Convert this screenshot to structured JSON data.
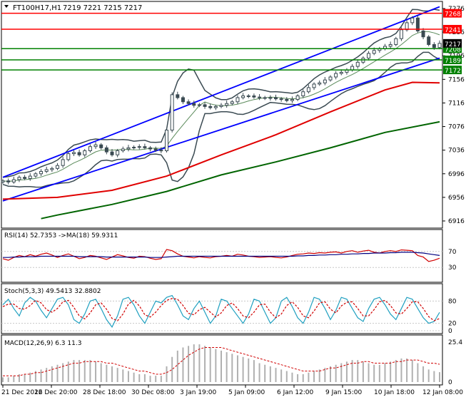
{
  "header": {
    "symbol": "FT100H17,H1",
    "ohlc": "7219 7221 7215 7217"
  },
  "colors": {
    "price_line": "#3a4a52",
    "channel": "#0000ff",
    "resistance": "#ff0000",
    "support": "#008000",
    "ma_red": "#e00000",
    "ma_green": "#006400",
    "bollinger": "#3a4a52",
    "tag_red": "#ff0000",
    "tag_green": "#008000",
    "tag_black": "#000000",
    "rsi_red": "#d00000",
    "rsi_blue": "#000080",
    "stoch_main": "#20a0c0",
    "stoch_signal": "#d00000",
    "macd_hist": "#b0b0b0",
    "macd_signal": "#d00000"
  },
  "chart_data": [
    {
      "type": "line",
      "panel": "price",
      "symbol": "FT100H17",
      "timeframe": "H1",
      "ylim": [
        6916,
        7276
      ],
      "y_ticks": [
        7276,
        7236,
        7196,
        7156,
        7116,
        7076,
        7036,
        6996,
        6956,
        6916
      ],
      "x_labels": [
        "21 Dec 2016",
        "22 Dec 20:00",
        "28 Dec 18:00",
        "30 Dec 08:00",
        "3 Jan 19:00",
        "5 Jan 09:00",
        "6 Jan 12:00",
        "9 Jan 15:00",
        "10 Jan 18:00",
        "12 Jan 08:00"
      ],
      "horizontal_levels": [
        {
          "price": 7268,
          "color": "red"
        },
        {
          "price": 7241,
          "color": "red"
        },
        {
          "price": 7208,
          "color": "green"
        },
        {
          "price": 7189,
          "color": "green"
        },
        {
          "price": 7172,
          "color": "green"
        }
      ],
      "current_price_label": 7217,
      "close_series": [
        6984,
        6982,
        6986,
        6990,
        6988,
        6992,
        6996,
        7000,
        7003,
        7005,
        7010,
        7020,
        7030,
        7032,
        7028,
        7035,
        7042,
        7045,
        7040,
        7033,
        7028,
        7035,
        7038,
        7040,
        7041,
        7042,
        7040,
        7038,
        7036,
        7035,
        7070,
        7130,
        7125,
        7118,
        7115,
        7112,
        7113,
        7110,
        7108,
        7110,
        7112,
        7115,
        7118,
        7125,
        7128,
        7128,
        7126,
        7125,
        7124,
        7125,
        7123,
        7122,
        7120,
        7122,
        7128,
        7135,
        7142,
        7148,
        7150,
        7155,
        7160,
        7166,
        7168,
        7172,
        7178,
        7185,
        7192,
        7200,
        7205,
        7208,
        7212,
        7215,
        7225,
        7240,
        7252,
        7260,
        7238,
        7228,
        7215,
        7210,
        7217
      ],
      "upper_channel": [
        [
          0,
          6990
        ],
        [
          80,
          7279
        ]
      ],
      "lower_channel": [
        [
          0,
          6950
        ],
        [
          80,
          7192
        ]
      ],
      "ma_red_series": [
        [
          0,
          6953
        ],
        [
          10,
          6956
        ],
        [
          20,
          6968
        ],
        [
          30,
          6992
        ],
        [
          40,
          7028
        ],
        [
          50,
          7062
        ],
        [
          60,
          7101
        ],
        [
          70,
          7138
        ],
        [
          75,
          7151
        ],
        [
          80,
          7150
        ]
      ],
      "ma_green_series": [
        [
          7,
          6920
        ],
        [
          10,
          6926
        ],
        [
          20,
          6944
        ],
        [
          30,
          6966
        ],
        [
          40,
          6994
        ],
        [
          50,
          7016
        ],
        [
          60,
          7040
        ],
        [
          70,
          7066
        ],
        [
          80,
          7084
        ]
      ]
    },
    {
      "type": "line",
      "panel": "RSI",
      "label": "RSI(14) 52.7353 ->MA(18) 59.9311",
      "ylim": [
        0,
        100
      ],
      "y_ticks": [
        70,
        30
      ],
      "series": [
        {
          "name": "RSI(14)",
          "values": [
            52,
            48,
            55,
            60,
            57,
            62,
            58,
            63,
            66,
            61,
            55,
            60,
            64,
            58,
            52,
            55,
            60,
            58,
            54,
            50,
            56,
            62,
            59,
            55,
            53,
            58,
            57,
            53,
            50,
            52,
            75,
            72,
            64,
            58,
            56,
            54,
            57,
            55,
            54,
            57,
            58,
            60,
            58,
            63,
            61,
            58,
            57,
            55,
            56,
            57,
            55,
            54,
            56,
            60,
            63,
            64,
            66,
            65,
            67,
            66,
            68,
            69,
            66,
            70,
            72,
            68,
            71,
            73,
            68,
            66,
            70,
            72,
            70,
            74,
            73,
            72,
            60,
            56,
            45,
            48,
            53
          ]
        },
        {
          "name": "MA(18)",
          "values": [
            55,
            55,
            56,
            56,
            57,
            57,
            57,
            58,
            58,
            58,
            58,
            58,
            58,
            58,
            57,
            57,
            57,
            57,
            57,
            56,
            56,
            56,
            56,
            56,
            56,
            56,
            56,
            55,
            55,
            55,
            56,
            57,
            58,
            58,
            58,
            58,
            58,
            58,
            58,
            58,
            58,
            58,
            58,
            58,
            58,
            58,
            58,
            58,
            58,
            58,
            58,
            58,
            58,
            58,
            59,
            59,
            60,
            60,
            61,
            61,
            62,
            62,
            63,
            63,
            64,
            64,
            65,
            65,
            66,
            66,
            66,
            67,
            67,
            68,
            68,
            68,
            67,
            66,
            64,
            62,
            60
          ]
        }
      ]
    },
    {
      "type": "line",
      "panel": "Stochastic",
      "label": "Stoch(5,3,3) 49.5413 32.8802",
      "ylim": [
        0,
        100
      ],
      "y_ticks": [
        80,
        20,
        0
      ],
      "series": [
        {
          "name": "%K",
          "values": [
            70,
            85,
            60,
            40,
            75,
            90,
            80,
            55,
            35,
            60,
            85,
            90,
            70,
            30,
            20,
            45,
            80,
            85,
            60,
            30,
            10,
            40,
            85,
            90,
            70,
            40,
            20,
            50,
            80,
            75,
            90,
            95,
            70,
            40,
            30,
            60,
            80,
            50,
            20,
            40,
            85,
            80,
            60,
            40,
            20,
            45,
            85,
            80,
            50,
            20,
            35,
            80,
            90,
            65,
            35,
            20,
            50,
            90,
            85,
            60,
            30,
            55,
            90,
            85,
            60,
            35,
            25,
            60,
            85,
            90,
            70,
            45,
            30,
            60,
            90,
            85,
            60,
            35,
            20,
            25,
            49.5413
          ]
        },
        {
          "name": "%D",
          "values": [
            65,
            72,
            72,
            60,
            58,
            68,
            82,
            75,
            57,
            50,
            60,
            78,
            82,
            63,
            40,
            32,
            48,
            70,
            75,
            58,
            33,
            27,
            45,
            72,
            82,
            67,
            43,
            37,
            50,
            68,
            82,
            87,
            85,
            68,
            47,
            43,
            57,
            63,
            50,
            37,
            48,
            68,
            75,
            60,
            40,
            35,
            50,
            70,
            72,
            50,
            35,
            45,
            68,
            78,
            63,
            40,
            35,
            53,
            75,
            78,
            58,
            48,
            67,
            77,
            78,
            60,
            40,
            40,
            57,
            78,
            82,
            68,
            48,
            45,
            60,
            78,
            78,
            60,
            38,
            27,
            32.8802
          ]
        }
      ]
    },
    {
      "type": "bar",
      "panel": "MACD",
      "label": "MACD(12,26,9) 6.3 11.3",
      "ylim": [
        0,
        25.4
      ],
      "y_ticks": [
        25.4,
        0
      ],
      "series": [
        {
          "name": "MACD",
          "values": [
            3,
            3,
            4,
            5,
            5,
            6,
            7,
            8,
            9,
            10,
            11,
            12,
            13,
            14,
            14,
            14,
            14,
            13,
            12,
            11,
            10,
            9,
            8,
            7,
            6,
            5,
            5,
            4,
            4,
            4,
            10,
            16,
            20,
            22,
            23,
            24,
            24,
            23,
            22,
            21,
            20,
            19,
            18,
            17,
            16,
            15,
            14,
            12,
            11,
            10,
            9,
            8,
            7,
            6,
            5,
            5,
            6,
            7,
            8,
            9,
            10,
            11,
            12,
            13,
            14,
            14,
            13,
            12,
            11,
            11,
            12,
            13,
            14,
            15,
            15,
            14,
            12,
            10,
            8,
            7,
            6.3
          ]
        },
        {
          "name": "Signal",
          "values": [
            4,
            4,
            4,
            4,
            5,
            5,
            6,
            6,
            7,
            8,
            9,
            10,
            11,
            12,
            12,
            13,
            13,
            13,
            13,
            12,
            12,
            11,
            10,
            9,
            8,
            7,
            7,
            6,
            5,
            5,
            6,
            8,
            11,
            14,
            17,
            19,
            21,
            22,
            22,
            22,
            22,
            21,
            20,
            19,
            18,
            17,
            16,
            15,
            14,
            13,
            12,
            11,
            10,
            9,
            8,
            7,
            7,
            7,
            7,
            8,
            9,
            9,
            10,
            11,
            12,
            12,
            13,
            13,
            12,
            12,
            12,
            12,
            13,
            13,
            14,
            14,
            14,
            13,
            12,
            12,
            11.3
          ]
        }
      ]
    }
  ]
}
